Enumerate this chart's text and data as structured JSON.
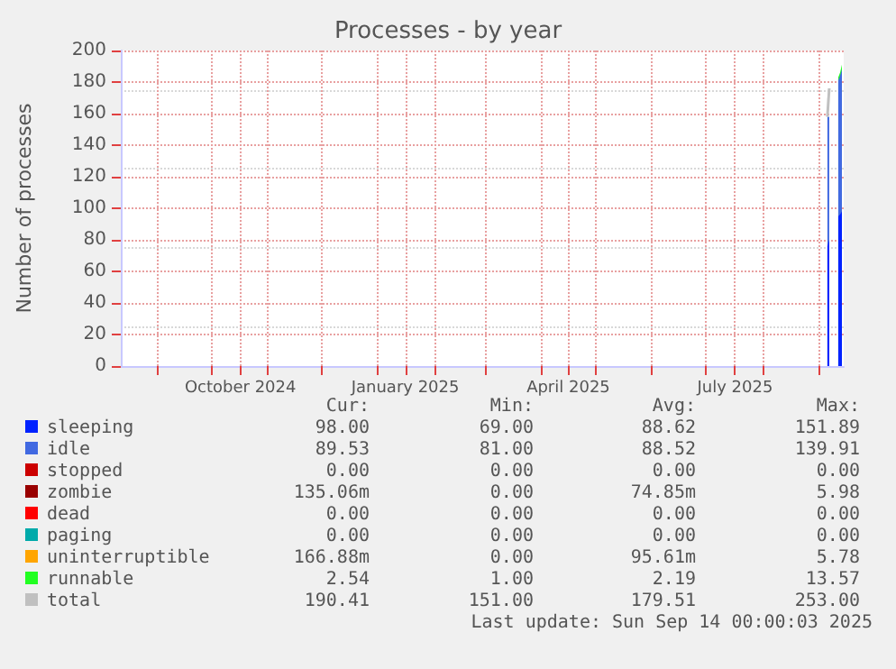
{
  "chart_data": {
    "type": "area",
    "title": "Processes - by year",
    "ylabel": "Number of processes",
    "stacked": true,
    "marker": "none",
    "grid": true,
    "legend": "bottom",
    "xlim": [
      "2024-08-12",
      "2025-09-15"
    ],
    "xticks": [
      {
        "value": "2024-09-01",
        "label": null
      },
      {
        "value": "2024-10-01",
        "label": null
      },
      {
        "value": "2024-10-17",
        "label": "October 2024"
      },
      {
        "value": "2024-11-01",
        "label": null
      },
      {
        "value": "2024-12-01",
        "label": null
      },
      {
        "value": "2025-01-01",
        "label": null
      },
      {
        "value": "2025-01-16",
        "label": "January 2025"
      },
      {
        "value": "2025-02-01",
        "label": null
      },
      {
        "value": "2025-03-01",
        "label": null
      },
      {
        "value": "2025-04-01",
        "label": null
      },
      {
        "value": "2025-04-16",
        "label": "April 2025"
      },
      {
        "value": "2025-05-01",
        "label": null
      },
      {
        "value": "2025-06-01",
        "label": null
      },
      {
        "value": "2025-07-01",
        "label": null
      },
      {
        "value": "2025-07-17",
        "label": "July 2025"
      },
      {
        "value": "2025-08-01",
        "label": null
      },
      {
        "value": "2025-09-01",
        "label": null
      }
    ],
    "ylim": [
      0,
      200
    ],
    "yticks": [
      0,
      20,
      40,
      60,
      80,
      100,
      120,
      140,
      160,
      180,
      200
    ],
    "x": [
      "2025-09-06",
      "2025-09-07",
      "2025-09-08",
      "2025-09-12",
      "2025-09-13",
      "2025-09-14"
    ],
    "series": [
      {
        "name": "sleeping",
        "color": "#0022ff",
        "values": [
          76,
          80,
          null,
          95,
          96,
          98
        ]
      },
      {
        "name": "idle",
        "color": "#4169e1",
        "values": [
          82,
          78,
          null,
          86,
          88,
          90
        ]
      },
      {
        "name": "stopped",
        "color": "#cc0000",
        "values": [
          null,
          null,
          null,
          null,
          null,
          null
        ]
      },
      {
        "name": "zombie",
        "color": "#990000",
        "values": [
          null,
          null,
          null,
          null,
          null,
          null
        ]
      },
      {
        "name": "dead",
        "color": "#ff0000",
        "values": [
          null,
          null,
          null,
          null,
          null,
          null
        ]
      },
      {
        "name": "paging",
        "color": "#00aaaa",
        "values": [
          null,
          null,
          null,
          null,
          null,
          null
        ]
      },
      {
        "name": "uninterruptible",
        "color": "#ffa500",
        "values": [
          null,
          null,
          null,
          null,
          null,
          null
        ]
      },
      {
        "name": "runnable",
        "color": "#22ff22",
        "values": [
          null,
          null,
          null,
          2,
          2,
          3
        ]
      },
      {
        "name": "total",
        "type": "line",
        "color": "#c0c0c0",
        "values": [
          158,
          176,
          null,
          null,
          null,
          null
        ]
      }
    ],
    "annotations": [
      "Cur:",
      "Min:",
      "Avg:",
      "Max:",
      "98.00",
      "69.00",
      "88.62",
      "151.89",
      "89.53",
      "81.00",
      "88.52",
      "139.91",
      "0.00",
      "0.00",
      "0.00",
      "0.00",
      "135.06m",
      "0.00",
      "74.85m",
      "5.98",
      "0.00",
      "0.00",
      "0.00",
      "0.00",
      "0.00",
      "0.00",
      "0.00",
      "0.00",
      "166.88m",
      "0.00",
      "95.61m",
      "5.78",
      "2.54",
      "1.00",
      "2.19",
      "13.57",
      "190.41",
      "151.00",
      "179.51",
      "253.00",
      "Last update: Sun Sep 14 00:00:03 2025"
    ]
  }
}
